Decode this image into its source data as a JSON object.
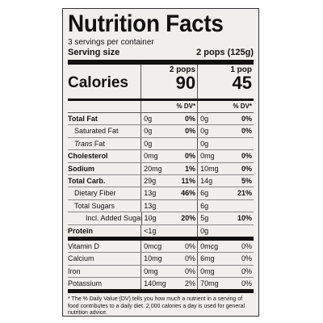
{
  "title": "Nutrition Facts",
  "servings_per_container": "3 servings per container",
  "serving_size_label": "Serving size",
  "serving_size_value": "2 pops (125g)",
  "calories_label": "Calories",
  "columns": [
    {
      "header": "2 pops",
      "calories": "90"
    },
    {
      "header": "1 pop",
      "calories": "45"
    }
  ],
  "dv_header": "% DV*",
  "nutrients": [
    {
      "label": "Total Fat",
      "v1": "0g",
      "p1": "0%",
      "v2": "0g",
      "p2": "0%"
    },
    {
      "label": "Saturated Fat",
      "v1": "0g",
      "p1": "0%",
      "v2": "0g",
      "p2": "0%"
    },
    {
      "label_pre": "Trans",
      "label_post": " Fat",
      "v1": "0g",
      "p1": "",
      "v2": "0g",
      "p2": ""
    },
    {
      "label": "Cholesterol",
      "v1": "0mg",
      "p1": "0%",
      "v2": "0mg",
      "p2": "0%"
    },
    {
      "label": "Sodium",
      "v1": "20mg",
      "p1": "1%",
      "v2": "10mg",
      "p2": "0%"
    },
    {
      "label": "Total Carb.",
      "v1": "29g",
      "p1": "11%",
      "v2": "14g",
      "p2": "5%"
    },
    {
      "label": "Dietary Fiber",
      "v1": "13g",
      "p1": "46%",
      "v2": "6g",
      "p2": "21%"
    },
    {
      "label": "Total Sugars",
      "v1": "13g",
      "p1": "",
      "v2": "6g",
      "p2": ""
    },
    {
      "label": "Incl. Added Sugars",
      "v1": "10g",
      "p1": "20%",
      "v2": "5g",
      "p2": "10%"
    },
    {
      "label": "Protein",
      "v1": "<1g",
      "p1": "",
      "v2": "0g",
      "p2": ""
    }
  ],
  "vitamins": [
    {
      "label": "Vitamin D",
      "v1": "0mcg",
      "p1": "0%",
      "v2": "0mcg",
      "p2": "0%"
    },
    {
      "label": "Calcium",
      "v1": "10mg",
      "p1": "0%",
      "v2": "6mg",
      "p2": "0%"
    },
    {
      "label": "Iron",
      "v1": "0mg",
      "p1": "0%",
      "v2": "0mg",
      "p2": "0%"
    },
    {
      "label": "Potassium",
      "v1": "140mg",
      "p1": "2%",
      "v2": "70mg",
      "p2": "0%"
    }
  ],
  "footnote": "* The % Daily Value (DV) tells you how much a nutrient in a serving of food contributes to a daily diet. 2,000 calories a day is used for general nutrition advice."
}
